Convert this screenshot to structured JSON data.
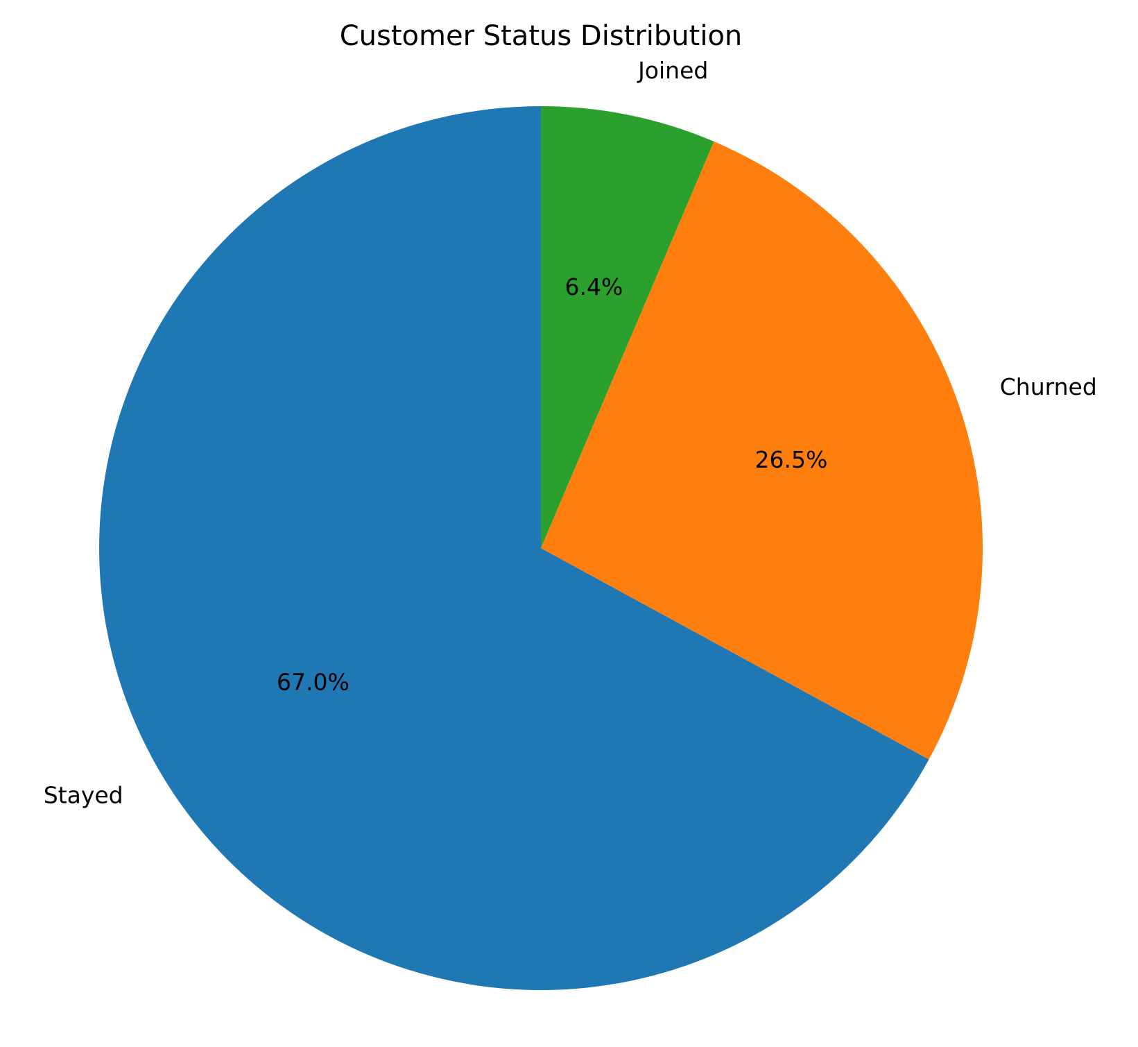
{
  "chart_data": {
    "type": "pie",
    "title": "Customer Status Distribution",
    "categories": [
      "Stayed",
      "Churned",
      "Joined"
    ],
    "values": [
      67.0,
      26.5,
      6.4
    ],
    "value_labels": [
      "67.0%",
      "26.5%",
      "6.4%"
    ],
    "colors": [
      "#1f77b4",
      "#ff7f0e",
      "#2ca02c"
    ],
    "start_angle_deg": 90,
    "direction": "counterclockwise",
    "legend": "none"
  }
}
